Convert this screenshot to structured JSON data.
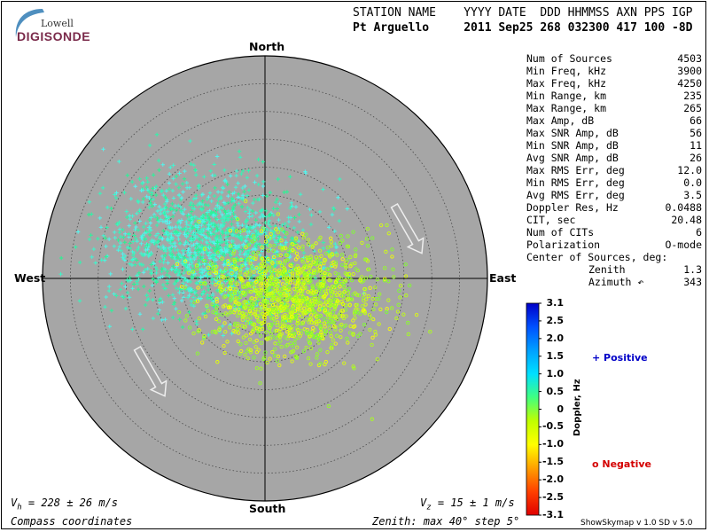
{
  "logo": {
    "line1": "Lowell",
    "line2": "DIGISONDE"
  },
  "header": {
    "labels_line": "STATION NAME    YYYY DATE  DDD HHMMSS AXN PPS IGP",
    "values_line": "Pt Arguello     2011 Sep25 268 032300 417 100 -8D"
  },
  "stats": [
    {
      "label": "Num of Sources",
      "value": "4503"
    },
    {
      "label": "Min Freq, kHz",
      "value": "3900"
    },
    {
      "label": "Max Freq, kHz",
      "value": "4250"
    },
    {
      "label": "Min Range, km",
      "value": "235"
    },
    {
      "label": "Max Range, km",
      "value": "265"
    },
    {
      "label": "Max Amp, dB",
      "value": "66"
    },
    {
      "label": "Max SNR Amp, dB",
      "value": "56"
    },
    {
      "label": "Min SNR Amp, dB",
      "value": "11"
    },
    {
      "label": "Avg SNR Amp, dB",
      "value": "26"
    },
    {
      "label": "Max RMS Err, deg",
      "value": "12.0"
    },
    {
      "label": "Min RMS Err, deg",
      "value": "0.0"
    },
    {
      "label": "Avg RMS Err, deg",
      "value": "3.5"
    },
    {
      "label": "Doppler Res, Hz",
      "value": "0.0488"
    },
    {
      "label": "CIT, sec",
      "value": "20.48"
    },
    {
      "label": "Num of CITs",
      "value": "6"
    },
    {
      "label": "Polarization",
      "value": "O-mode"
    },
    {
      "label": "Center of Sources, deg:",
      "value": ""
    }
  ],
  "center": {
    "zenith_label": "Zenith",
    "zenith_value": "1.3",
    "azimuth_label": "Azimuth",
    "azimuth_value": "343"
  },
  "compass": {
    "north": "North",
    "south": "South",
    "east": "East",
    "west": "West"
  },
  "footer": {
    "vh_symbol": "V",
    "vh_sub": "h",
    "vh_text": " = 228 ± 26 m/s",
    "vz_symbol": "V",
    "vz_sub": "z",
    "vz_text": " = 15 ± 1 m/s",
    "coords": "Compass coordinates",
    "zenith": "Zenith: max 40°  step 5°",
    "version": "ShowSkymap v 1.0   SD v 5.0"
  },
  "legend": {
    "positive": "+ Positive",
    "negative": "o Negative"
  },
  "colorbar": {
    "title": "Doppler, Hz",
    "ticks": [
      "3.1",
      "2.5",
      "2.0",
      "1.5",
      "1.0",
      "0.5",
      "0",
      "-0.5",
      "-1.0",
      "-1.5",
      "-2.0",
      "-2.5",
      "-3.1"
    ],
    "colors": [
      "#0000c8",
      "#0050ff",
      "#00a0ff",
      "#00e0ff",
      "#40ff80",
      "#c0ff00",
      "#ffff00",
      "#ffa000",
      "#ff4000",
      "#e00000"
    ]
  },
  "chart_data": {
    "type": "scatter",
    "plot": "polar skymap",
    "zenith_max_deg": 40,
    "zenith_step_deg": 5,
    "background": "#a6a6a6",
    "series": [
      {
        "name": "Positive",
        "marker": "+",
        "centroid": {
          "zenith_deg": 12,
          "azimuth_deg": 300
        },
        "spread_deg": 7,
        "count": 1600
      },
      {
        "name": "Negative",
        "marker": "o",
        "centroid": {
          "zenith_deg": 6,
          "azimuth_deg": 125
        },
        "spread_deg": 6,
        "count": 1400
      }
    ],
    "arrows_azimuth_deg": [
      155,
      160
    ]
  }
}
